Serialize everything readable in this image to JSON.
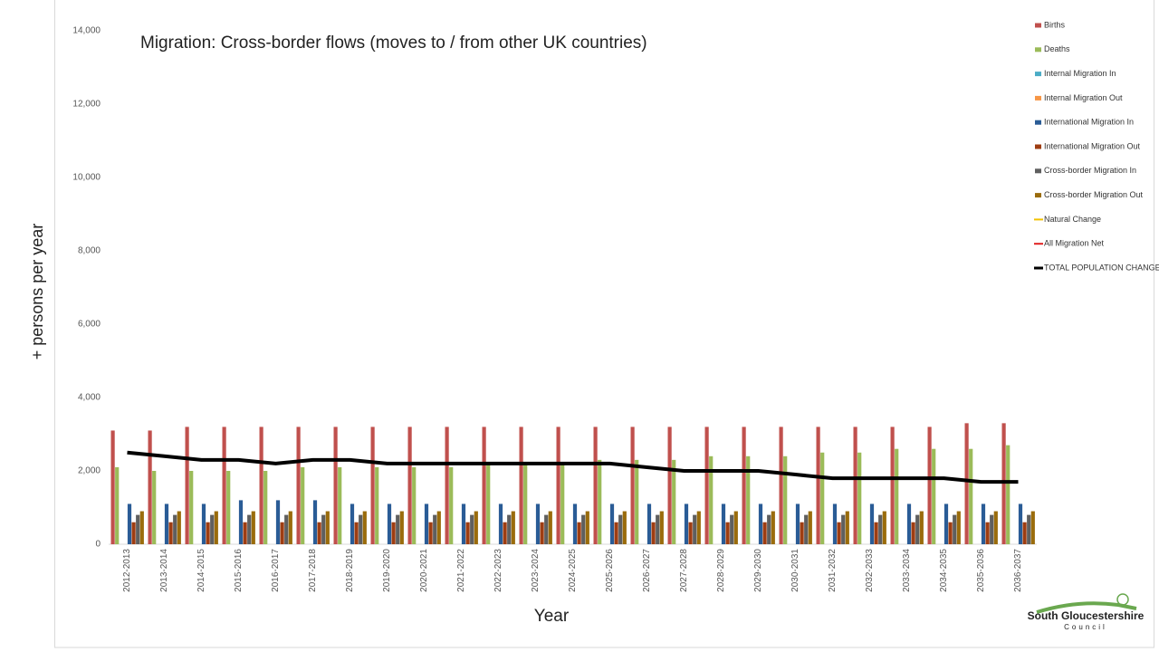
{
  "chart_data": {
    "type": "bar",
    "title": "Migration:  Cross-border flows (moves to / from other UK countries)",
    "y_label": "+ persons per year",
    "x_label": "Year",
    "logo": [
      "South Gloucestershire",
      "Council"
    ],
    "categories": [
      "2012-2013",
      "2013-2014",
      "2014-2015",
      "2015-2016",
      "2016-2017",
      "2017-2018",
      "2018-2019",
      "2019-2020",
      "2020-2021",
      "2021-2022",
      "2022-2023",
      "2023-2024",
      "2024-2025",
      "2025-2026",
      "2026-2027",
      "2027-2028",
      "2028-2029",
      "2029-2030",
      "2030-2031",
      "2031-2032",
      "2032-2033",
      "2033-2034",
      "2034-2035",
      "2035-2036",
      "2036-2037"
    ],
    "ylim": [
      0,
      14000
    ],
    "yticks": [
      0,
      {
        "value": 2000,
        "label": "2,000"
      },
      {
        "value": 4000,
        "label": "4,000"
      },
      {
        "value": 6000,
        "label": "6,000"
      },
      {
        "value": 8000,
        "label": "8,000"
      },
      {
        "value": 10000,
        "label": "10,000"
      },
      {
        "value": 12000,
        "label": "12,000"
      },
      {
        "value": 14000,
        "label": "14,000"
      }
    ],
    "grid": false,
    "legend": "right",
    "series": [
      {
        "name": "Births",
        "type": "bar",
        "color": "#c0504d",
        "values": [
          3100,
          3100,
          3200,
          3200,
          3200,
          3200,
          3200,
          3200,
          3200,
          3200,
          3200,
          3200,
          3200,
          3200,
          3200,
          3200,
          3200,
          3200,
          3200,
          3200,
          3200,
          3200,
          3200,
          3300,
          3300
        ]
      },
      {
        "name": "Deaths",
        "type": "bar",
        "color": "#9bbb59",
        "values": [
          2100,
          2000,
          2000,
          2000,
          2000,
          2100,
          2100,
          2100,
          2100,
          2100,
          2200,
          2200,
          2200,
          2300,
          2300,
          2300,
          2400,
          2400,
          2400,
          2500,
          2500,
          2600,
          2600,
          2600,
          2700
        ]
      },
      {
        "name": "Internal Migration In",
        "type": "bar",
        "color": "#4bacc6",
        "values": [
          null,
          null,
          null,
          null,
          null,
          null,
          null,
          null,
          null,
          null,
          null,
          null,
          null,
          null,
          null,
          null,
          null,
          null,
          null,
          null,
          null,
          null,
          null,
          null,
          null
        ]
      },
      {
        "name": "Internal Migration Out",
        "type": "bar",
        "color": "#f79646",
        "values": [
          null,
          null,
          null,
          null,
          null,
          null,
          null,
          null,
          null,
          null,
          null,
          null,
          null,
          null,
          null,
          null,
          null,
          null,
          null,
          null,
          null,
          null,
          null,
          null,
          null
        ]
      },
      {
        "name": "International Migration In",
        "type": "bar",
        "color": "#2a5c96",
        "values": [
          1100,
          1100,
          1100,
          1200,
          1200,
          1200,
          1100,
          1100,
          1100,
          1100,
          1100,
          1100,
          1100,
          1100,
          1100,
          1100,
          1100,
          1100,
          1100,
          1100,
          1100,
          1100,
          1100,
          1100,
          1100
        ]
      },
      {
        "name": "International Migration Out",
        "type": "bar",
        "color": "#9e3d12",
        "values": [
          600,
          600,
          600,
          600,
          600,
          600,
          600,
          600,
          600,
          600,
          600,
          600,
          600,
          600,
          600,
          600,
          600,
          600,
          600,
          600,
          600,
          600,
          600,
          600,
          600
        ]
      },
      {
        "name": "Cross-border Migration In",
        "type": "bar",
        "color": "#5f5f5f",
        "values": [
          800,
          800,
          800,
          800,
          800,
          800,
          800,
          800,
          800,
          800,
          800,
          800,
          800,
          800,
          800,
          800,
          800,
          800,
          800,
          800,
          800,
          800,
          800,
          800,
          800
        ]
      },
      {
        "name": "Cross-border Migration Out",
        "type": "bar",
        "color": "#9a6c0c",
        "values": [
          900,
          900,
          900,
          900,
          900,
          900,
          900,
          900,
          900,
          900,
          900,
          900,
          900,
          900,
          900,
          900,
          900,
          900,
          900,
          900,
          900,
          900,
          900,
          900,
          900
        ]
      },
      {
        "name": "Natural Change",
        "type": "line",
        "color": "#f2c200",
        "values": [
          null,
          null,
          null,
          null,
          null,
          null,
          null,
          null,
          null,
          null,
          null,
          null,
          null,
          null,
          null,
          null,
          null,
          null,
          null,
          null,
          null,
          null,
          null,
          null,
          null
        ]
      },
      {
        "name": "All Migration Net",
        "type": "line",
        "color": "#e02020",
        "values": [
          null,
          null,
          null,
          null,
          null,
          null,
          null,
          null,
          null,
          null,
          null,
          null,
          null,
          null,
          null,
          null,
          null,
          null,
          null,
          null,
          null,
          null,
          null,
          null,
          null
        ]
      },
      {
        "name": "TOTAL POPULATION CHANGE",
        "type": "line",
        "color": "#000000",
        "values": [
          2500,
          2400,
          2300,
          2300,
          2200,
          2300,
          2300,
          2200,
          2200,
          2200,
          2200,
          2200,
          2200,
          2200,
          2100,
          2000,
          2000,
          2000,
          1900,
          1800,
          1800,
          1800,
          1800,
          1700,
          1700
        ]
      }
    ]
  }
}
